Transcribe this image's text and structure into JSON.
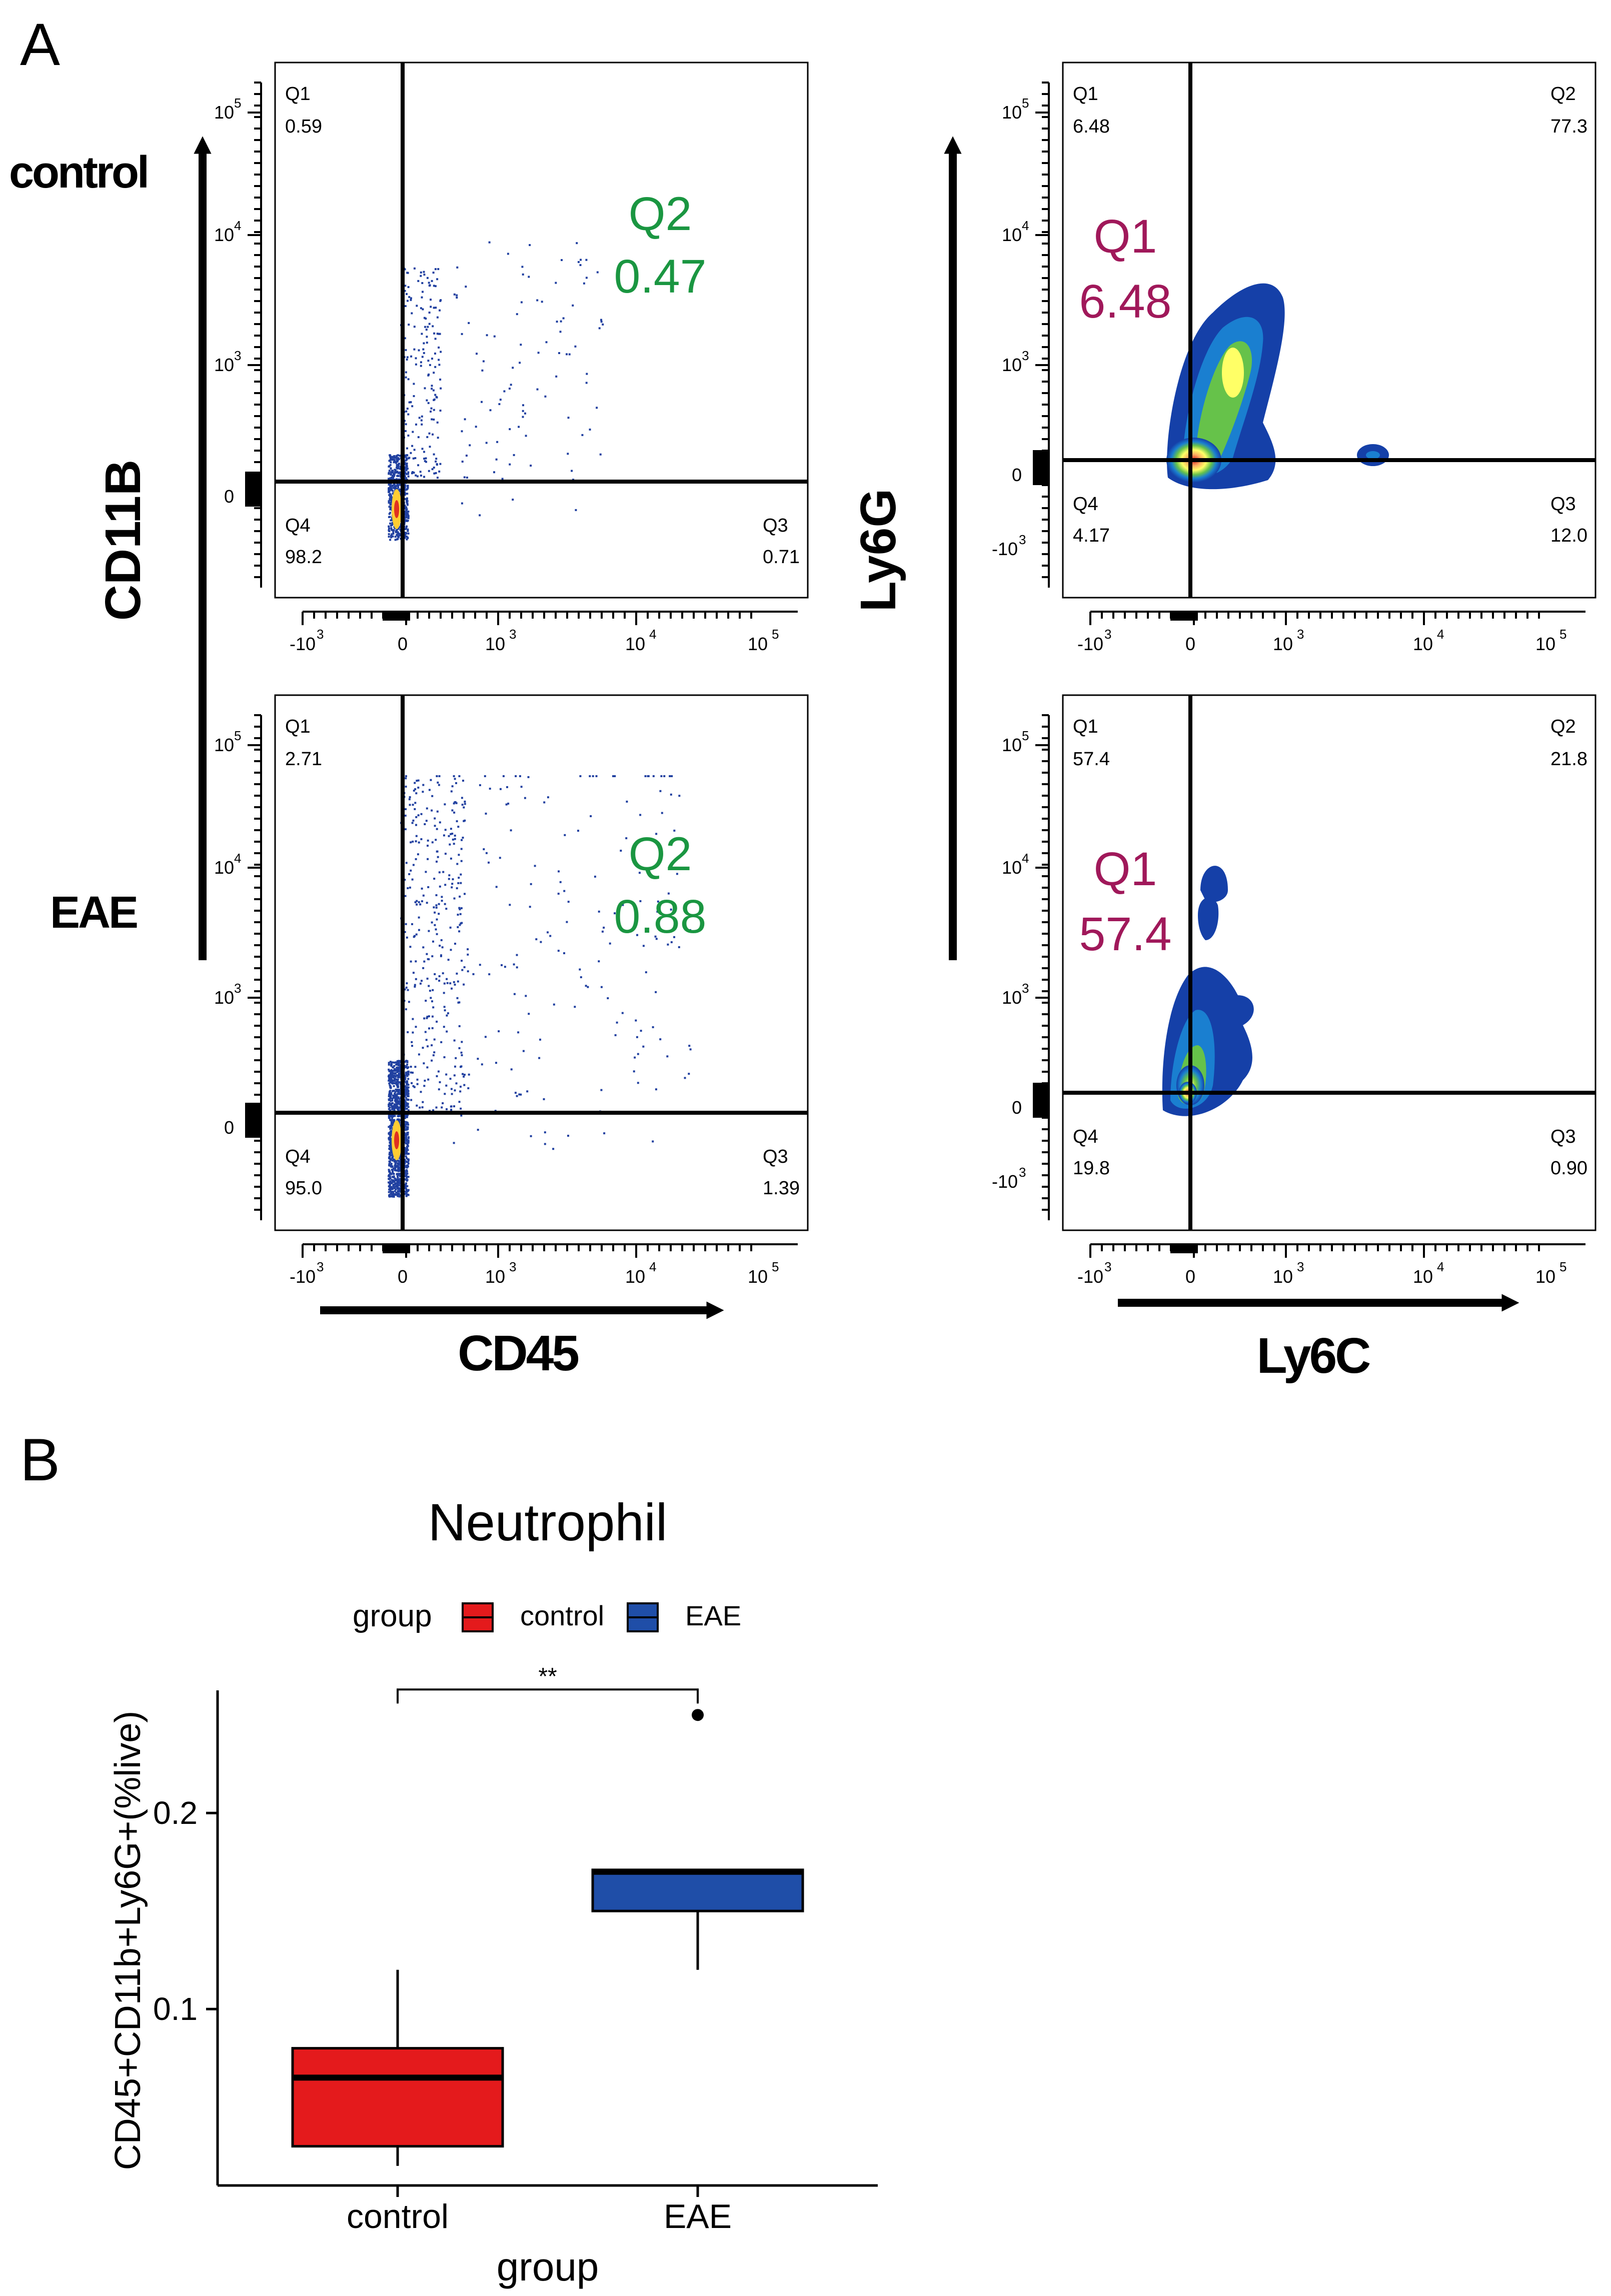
{
  "panel_a": {
    "label": "A",
    "row_labels": {
      "control": "control",
      "eae": "EAE"
    },
    "axis_left": {
      "y_label": "CD11B",
      "x_label": "CD45"
    },
    "axis_right": {
      "y_label": "Ly6G",
      "x_label": "Ly6C"
    },
    "tick_labels": {
      "x": [
        "-10",
        "0",
        "10",
        "10",
        "10"
      ],
      "x_exp": [
        "3",
        "",
        "3",
        "4",
        "5"
      ],
      "y": [
        "10",
        "10",
        "10",
        "0"
      ],
      "y_exp": [
        "5",
        "4",
        "3",
        ""
      ],
      "y_neg": "-10",
      "y_neg_exp": "3"
    },
    "plots": [
      {
        "q1": "Q1",
        "q1v": "0.59",
        "q2": "Q2",
        "q2v": "0.47",
        "q3": "Q3",
        "q3v": "0.71",
        "q4": "Q4",
        "q4v": "98.2"
      },
      {
        "q1": "Q1",
        "q1v": "6.48",
        "q2": "Q2",
        "q2v": "77.3",
        "q3": "Q3",
        "q3v": "12.0",
        "q4": "Q4",
        "q4v": "4.17"
      },
      {
        "q1": "Q1",
        "q1v": "2.71",
        "q2": "Q2",
        "q2v": "0.88",
        "q3": "Q3",
        "q3v": "1.39",
        "q4": "Q4",
        "q4v": "95.0"
      },
      {
        "q1": "Q1",
        "q1v": "57.4",
        "q2": "Q2",
        "q2v": "21.8",
        "q3": "Q3",
        "q3v": "0.90",
        "q4": "Q4",
        "q4v": "19.8"
      }
    ],
    "colors": {
      "highlight_green": "#1a9641",
      "highlight_magenta": "#a0185a",
      "dot": "#2040a0"
    }
  },
  "panel_b": {
    "label": "B",
    "chart_data": {
      "type": "box",
      "title": "Neutrophil",
      "xlabel": "group",
      "ylabel": "CD45+CD11b+Ly6G+(%live)",
      "legend_title": "group",
      "legend_placement": "top",
      "categories": [
        "control",
        "EAE"
      ],
      "yticks": [
        "0.1",
        "0.2"
      ],
      "ylim": [
        0.01,
        0.26
      ],
      "boxes": [
        {
          "name": "control",
          "min": 0.02,
          "q1": 0.03,
          "median": 0.065,
          "q3": 0.08,
          "max": 0.12,
          "outliers": [],
          "color": "#e41a1c"
        },
        {
          "name": "EAE",
          "min": 0.12,
          "q1": 0.15,
          "median": 0.17,
          "q3": 0.171,
          "max": 0.171,
          "outliers": [
            0.25
          ],
          "color": "#1f4ea8"
        }
      ],
      "significance": {
        "label": "**",
        "between": [
          "control",
          "EAE"
        ],
        "y": 0.263
      }
    }
  }
}
